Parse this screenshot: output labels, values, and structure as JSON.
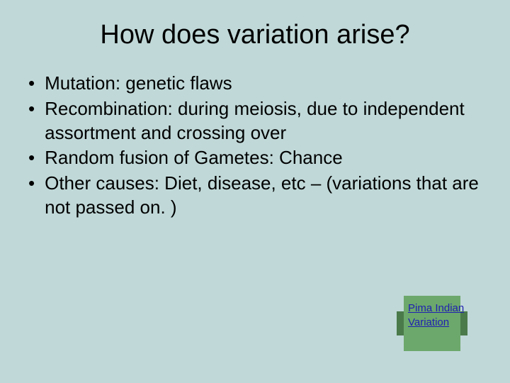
{
  "background_color": "#c0d8d8",
  "title": {
    "text": "How does variation arise?",
    "fontsize": 38,
    "color": "#000000"
  },
  "bullets": {
    "fontsize": 26,
    "color": "#000000",
    "marker": "•",
    "items": [
      "Mutation: genetic flaws",
      "Recombination: during meiosis, due to independent assortment and crossing over",
      "Random fusion of Gametes: Chance",
      "Other causes: Diet, disease, etc – (variations that are not passed on. )"
    ]
  },
  "link": {
    "text": "Pima Indian Variation",
    "text_color": "#2020b0",
    "bg_color": "#6ca86c",
    "bar_color": "#4a7a4a",
    "fontsize": 15
  }
}
